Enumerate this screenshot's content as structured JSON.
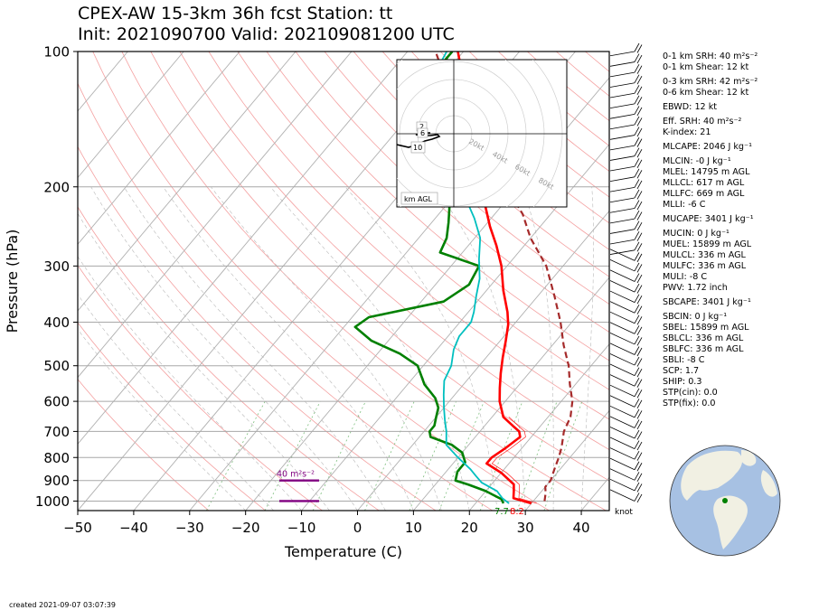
{
  "title": {
    "line1": "CPEX-AW 15-3km  36h fcst  Station: tt",
    "line2": "Init: 2021090700  Valid: 202109081200 UTC"
  },
  "chart_data": {
    "type": "line",
    "subtype": "skew-T log-P",
    "xlabel": "Temperature (C)",
    "ylabel": "Pressure (hPa)",
    "x_ticks": [
      -50,
      -40,
      -30,
      -20,
      -10,
      0,
      10,
      20,
      30,
      40
    ],
    "y_ticks": [
      100,
      200,
      300,
      400,
      500,
      600,
      700,
      800,
      900,
      1000
    ],
    "xlim": [
      -50,
      45
    ],
    "ylim": [
      1050,
      100
    ],
    "colors": {
      "temperature": "#ff0000",
      "dewpoint": "#008000",
      "wetbulb": "#00bfbf",
      "parcel": "#a52a2a",
      "srh": "#800080",
      "isotherm": "#b0b0b0",
      "dry_adiabat": "#f4a0a0",
      "mixing_ratio": "#7fbf7f"
    },
    "series": [
      {
        "name": "temperature",
        "points": [
          [
            30,
            1012
          ],
          [
            26,
            985
          ],
          [
            25,
            950
          ],
          [
            24,
            918
          ],
          [
            20,
            865
          ],
          [
            16,
            825
          ],
          [
            16,
            800
          ],
          [
            17,
            765
          ],
          [
            18,
            720
          ],
          [
            17,
            700
          ],
          [
            15,
            680
          ],
          [
            12,
            650
          ],
          [
            9,
            600
          ],
          [
            7,
            560
          ],
          [
            5,
            520
          ],
          [
            3,
            480
          ],
          [
            1,
            440
          ],
          [
            -1,
            405
          ],
          [
            -3,
            380
          ],
          [
            -7,
            340
          ],
          [
            -11,
            300
          ],
          [
            -15,
            270
          ],
          [
            -19,
            245
          ],
          [
            -23,
            220
          ],
          [
            -27,
            200
          ],
          [
            -35,
            160
          ],
          [
            -43,
            125
          ],
          [
            -51,
            100
          ]
        ]
      },
      {
        "name": "dewpoint",
        "points": [
          [
            25,
            1012
          ],
          [
            24,
            990
          ],
          [
            22,
            970
          ],
          [
            20,
            950
          ],
          [
            16,
            920
          ],
          [
            13,
            900
          ],
          [
            12,
            860
          ],
          [
            12,
            820
          ],
          [
            10,
            780
          ],
          [
            7,
            750
          ],
          [
            2,
            720
          ],
          [
            1,
            700
          ],
          [
            1,
            680
          ],
          [
            0,
            650
          ],
          [
            -1,
            620
          ],
          [
            -3,
            590
          ],
          [
            -7,
            550
          ],
          [
            -11,
            500
          ],
          [
            -16,
            470
          ],
          [
            -23,
            440
          ],
          [
            -28,
            410
          ],
          [
            -27,
            390
          ],
          [
            -16,
            360
          ],
          [
            -14,
            330
          ],
          [
            -15,
            300
          ],
          [
            -24,
            280
          ],
          [
            -25,
            260
          ],
          [
            -27,
            240
          ],
          [
            -30,
            215
          ],
          [
            -37,
            195
          ],
          [
            -41,
            170
          ],
          [
            -45,
            140
          ],
          [
            -49,
            120
          ],
          [
            -52,
            110
          ],
          [
            -52,
            100
          ]
        ]
      },
      {
        "name": "wetbulb",
        "points": [
          [
            26,
            1012
          ],
          [
            24,
            985
          ],
          [
            22,
            950
          ],
          [
            18,
            910
          ],
          [
            16,
            880
          ],
          [
            14,
            850
          ],
          [
            10,
            800
          ],
          [
            6,
            750
          ],
          [
            4,
            700
          ],
          [
            2,
            660
          ],
          [
            0,
            620
          ],
          [
            -2,
            580
          ],
          [
            -4,
            540
          ],
          [
            -5,
            500
          ],
          [
            -7,
            460
          ],
          [
            -8,
            430
          ],
          [
            -8,
            400
          ],
          [
            -9,
            380
          ],
          [
            -11,
            350
          ],
          [
            -13,
            320
          ],
          [
            -16,
            290
          ],
          [
            -19,
            260
          ],
          [
            -23,
            235
          ],
          [
            -28,
            210
          ],
          [
            -32,
            190
          ],
          [
            -38,
            160
          ],
          [
            -45,
            130
          ],
          [
            -52,
            110
          ],
          [
            -53,
            100
          ]
        ]
      },
      {
        "name": "parcel",
        "points": [
          [
            32,
            1000
          ],
          [
            31,
            960
          ],
          [
            30,
            930
          ],
          [
            30,
            900
          ],
          [
            29,
            850
          ],
          [
            28,
            800
          ],
          [
            27,
            760
          ],
          [
            25,
            700
          ],
          [
            24,
            650
          ],
          [
            22,
            600
          ],
          [
            19,
            550
          ],
          [
            16,
            500
          ],
          [
            12,
            450
          ],
          [
            8,
            400
          ],
          [
            3,
            350
          ],
          [
            -3,
            300
          ],
          [
            -10,
            260
          ],
          [
            -15,
            230
          ],
          [
            -22,
            200
          ],
          [
            -34,
            160
          ],
          [
            -44,
            130
          ],
          [
            -55,
            100
          ]
        ]
      }
    ],
    "srh_bars": [
      {
        "label": "40 m$^2$s$^{-2}$",
        "label_display": "40 m²s⁻²",
        "pressure": 900
      },
      {
        "label": "",
        "pressure": 1000
      }
    ],
    "surface_labels": {
      "dewpoint": "7.7",
      "temperature": "8.2"
    },
    "wind_unit": "knot",
    "hodograph": {
      "rings": [
        "20kt",
        "40kt",
        "60kt",
        "80kt"
      ],
      "height_labels": [
        "2",
        "6",
        "10"
      ],
      "legend": "km AGL"
    }
  },
  "params": [
    "0-1 km SRH: 40 m²s⁻²",
    "0-1 km Shear: 12 kt",
    "0-3 km SRH: 42 m²s⁻²",
    "0-6 km Shear: 12 kt",
    "EBWD: 12 kt",
    "Eff. SRH: 40 m²s⁻²",
    "K-index: 21",
    "MLCAPE: 2046 J kg⁻¹",
    "MLCIN: -0 J kg⁻¹",
    "MLEL: 14795 m AGL",
    "MLLCL: 617 m AGL",
    "MLLFC: 669 m AGL",
    "MLLI: -6 C",
    "MUCAPE: 3401 J kg⁻¹",
    "MUCIN: 0 J kg⁻¹",
    "MUEL: 15899 m AGL",
    "MULCL: 336 m AGL",
    "MULFC: 336 m AGL",
    "MULI: -8 C",
    "PWV: 1.72 inch",
    "SBCAPE: 3401 J kg⁻¹",
    "SBCIN: 0 J kg⁻¹",
    "SBEL: 15899 m AGL",
    "SBLCL: 336 m AGL",
    "SBLFC: 336 m AGL",
    "SBLI: -8 C",
    "SCP: 1.7",
    "SHIP: 0.3",
    "STP(cin): 0.0",
    "STP(fix): 0.0"
  ],
  "created": "created 2021-09-07 03:07:39"
}
